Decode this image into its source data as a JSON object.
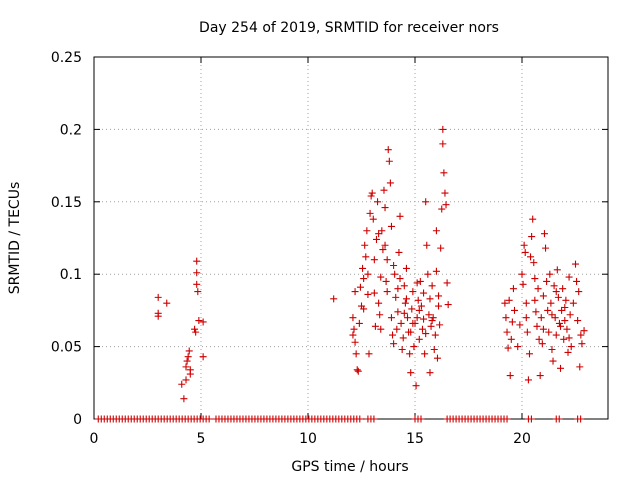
{
  "chart_data": {
    "type": "scatter",
    "title": "Day 254 of 2019, SRMTID for receiver nors",
    "xlabel": "GPS time / hours",
    "ylabel": "SRMTID / TECUs",
    "xlim": [
      0,
      24
    ],
    "ylim": [
      0,
      0.25
    ],
    "grid": true,
    "legend": "none",
    "marker": "+",
    "marker_color": "#cc0000",
    "x_ticks": [
      {
        "value": 0,
        "label": "0"
      },
      {
        "value": 5,
        "label": "5"
      },
      {
        "value": 10,
        "label": "10"
      },
      {
        "value": 15,
        "label": "15"
      },
      {
        "value": 20,
        "label": "20"
      }
    ],
    "y_ticks": [
      {
        "value": 0,
        "label": "0"
      },
      {
        "value": 0.05,
        "label": "0.05"
      },
      {
        "value": 0.1,
        "label": "0.1"
      },
      {
        "value": 0.15,
        "label": "0.15"
      },
      {
        "value": 0.2,
        "label": "0.2"
      },
      {
        "value": 0.25,
        "label": "0.25"
      }
    ],
    "series": [
      {
        "name": "SRMTID",
        "points": [
          [
            3.0,
            0.084
          ],
          [
            3.0,
            0.073
          ],
          [
            3.0,
            0.071
          ],
          [
            3.4,
            0.08
          ],
          [
            4.1,
            0.024
          ],
          [
            4.2,
            0.014
          ],
          [
            4.3,
            0.027
          ],
          [
            4.3,
            0.036
          ],
          [
            4.35,
            0.04
          ],
          [
            4.4,
            0.043
          ],
          [
            4.45,
            0.047
          ],
          [
            4.5,
            0.031
          ],
          [
            4.5,
            0.034
          ],
          [
            4.7,
            0.062
          ],
          [
            4.75,
            0.06
          ],
          [
            4.8,
            0.109
          ],
          [
            4.8,
            0.101
          ],
          [
            4.8,
            0.093
          ],
          [
            4.85,
            0.088
          ],
          [
            4.9,
            0.068
          ],
          [
            5.1,
            0.067
          ],
          [
            5.1,
            0.043
          ],
          [
            11.2,
            0.083
          ],
          [
            12.1,
            0.07
          ],
          [
            12.1,
            0.058
          ],
          [
            12.15,
            0.062
          ],
          [
            12.2,
            0.088
          ],
          [
            12.2,
            0.053
          ],
          [
            12.25,
            0.045
          ],
          [
            12.3,
            0.034
          ],
          [
            12.35,
            0.033
          ],
          [
            12.4,
            0.066
          ],
          [
            12.45,
            0.091
          ],
          [
            12.5,
            0.078
          ],
          [
            12.55,
            0.104
          ],
          [
            12.6,
            0.097
          ],
          [
            12.65,
            0.12
          ],
          [
            12.7,
            0.112
          ],
          [
            12.75,
            0.13
          ],
          [
            12.8,
            0.086
          ],
          [
            12.85,
            0.045
          ],
          [
            12.9,
            0.142
          ],
          [
            12.95,
            0.154
          ],
          [
            13.0,
            0.156
          ],
          [
            13.05,
            0.138
          ],
          [
            13.1,
            0.11
          ],
          [
            13.15,
            0.064
          ],
          [
            13.2,
            0.124
          ],
          [
            13.25,
            0.15
          ],
          [
            13.3,
            0.08
          ],
          [
            13.35,
            0.072
          ],
          [
            13.4,
            0.098
          ],
          [
            13.45,
            0.13
          ],
          [
            13.5,
            0.117
          ],
          [
            13.55,
            0.158
          ],
          [
            13.6,
            0.146
          ],
          [
            13.65,
            0.095
          ],
          [
            13.7,
            0.088
          ],
          [
            13.75,
            0.186
          ],
          [
            13.8,
            0.178
          ],
          [
            13.85,
            0.163
          ],
          [
            13.9,
            0.07
          ],
          [
            13.95,
            0.058
          ],
          [
            14.0,
            0.106
          ],
          [
            14.05,
            0.1
          ],
          [
            14.1,
            0.084
          ],
          [
            14.15,
            0.062
          ],
          [
            14.2,
            0.074
          ],
          [
            14.25,
            0.115
          ],
          [
            14.3,
            0.14
          ],
          [
            14.35,
            0.066
          ],
          [
            14.4,
            0.048
          ],
          [
            14.45,
            0.056
          ],
          [
            14.5,
            0.092
          ],
          [
            14.55,
            0.08
          ],
          [
            14.6,
            0.104
          ],
          [
            14.65,
            0.07
          ],
          [
            14.7,
            0.06
          ],
          [
            14.75,
            0.045
          ],
          [
            14.8,
            0.032
          ],
          [
            14.85,
            0.076
          ],
          [
            14.9,
            0.088
          ],
          [
            14.95,
            0.05
          ],
          [
            15.0,
            0.066
          ],
          [
            15.05,
            0.023
          ],
          [
            15.1,
            0.07
          ],
          [
            15.15,
            0.082
          ],
          [
            15.2,
            0.055
          ],
          [
            15.25,
            0.095
          ],
          [
            15.3,
            0.078
          ],
          [
            15.35,
            0.062
          ],
          [
            15.4,
            0.087
          ],
          [
            15.45,
            0.045
          ],
          [
            15.5,
            0.15
          ],
          [
            15.55,
            0.12
          ],
          [
            15.6,
            0.1
          ],
          [
            15.65,
            0.072
          ],
          [
            15.7,
            0.032
          ],
          [
            15.75,
            0.064
          ],
          [
            15.8,
            0.092
          ],
          [
            15.85,
            0.07
          ],
          [
            15.9,
            0.048
          ],
          [
            15.95,
            0.058
          ],
          [
            16.0,
            0.13
          ],
          [
            16.05,
            0.042
          ],
          [
            16.1,
            0.078
          ],
          [
            16.15,
            0.065
          ],
          [
            16.2,
            0.118
          ],
          [
            16.25,
            0.145
          ],
          [
            16.3,
            0.2
          ],
          [
            16.3,
            0.19
          ],
          [
            16.35,
            0.17
          ],
          [
            16.4,
            0.156
          ],
          [
            16.45,
            0.148
          ],
          [
            16.5,
            0.094
          ],
          [
            16.55,
            0.079
          ],
          [
            12.8,
            0.1
          ],
          [
            13.1,
            0.087
          ],
          [
            13.4,
            0.062
          ],
          [
            13.7,
            0.11
          ],
          [
            14.0,
            0.052
          ],
          [
            14.3,
            0.097
          ],
          [
            14.6,
            0.083
          ],
          [
            14.9,
            0.066
          ],
          [
            15.2,
            0.075
          ],
          [
            15.5,
            0.059
          ],
          [
            15.8,
            0.068
          ],
          [
            16.1,
            0.085
          ],
          [
            12.6,
            0.076
          ],
          [
            13.3,
            0.128
          ],
          [
            13.9,
            0.133
          ],
          [
            14.5,
            0.073
          ],
          [
            15.1,
            0.094
          ],
          [
            15.7,
            0.083
          ],
          [
            16.0,
            0.102
          ],
          [
            13.6,
            0.12
          ],
          [
            14.2,
            0.09
          ],
          [
            14.8,
            0.06
          ],
          [
            15.4,
            0.069
          ],
          [
            19.2,
            0.08
          ],
          [
            19.25,
            0.07
          ],
          [
            19.3,
            0.06
          ],
          [
            19.35,
            0.049
          ],
          [
            19.4,
            0.082
          ],
          [
            19.45,
            0.03
          ],
          [
            19.5,
            0.055
          ],
          [
            19.55,
            0.067
          ],
          [
            19.6,
            0.09
          ],
          [
            19.65,
            0.075
          ],
          [
            19.8,
            0.05
          ],
          [
            19.9,
            0.065
          ],
          [
            20.0,
            0.1
          ],
          [
            20.05,
            0.093
          ],
          [
            20.1,
            0.12
          ],
          [
            20.15,
            0.115
          ],
          [
            20.2,
            0.08
          ],
          [
            20.25,
            0.06
          ],
          [
            20.3,
            0.027
          ],
          [
            20.35,
            0.045
          ],
          [
            20.4,
            0.112
          ],
          [
            20.45,
            0.126
          ],
          [
            20.5,
            0.138
          ],
          [
            20.55,
            0.108
          ],
          [
            20.6,
            0.082
          ],
          [
            20.65,
            0.074
          ],
          [
            20.7,
            0.064
          ],
          [
            20.75,
            0.09
          ],
          [
            20.8,
            0.055
          ],
          [
            20.85,
            0.03
          ],
          [
            20.9,
            0.07
          ],
          [
            20.95,
            0.052
          ],
          [
            21.0,
            0.085
          ],
          [
            21.05,
            0.128
          ],
          [
            21.1,
            0.118
          ],
          [
            21.15,
            0.095
          ],
          [
            21.2,
            0.075
          ],
          [
            21.25,
            0.06
          ],
          [
            21.3,
            0.1
          ],
          [
            21.35,
            0.08
          ],
          [
            21.4,
            0.048
          ],
          [
            21.45,
            0.04
          ],
          [
            21.5,
            0.092
          ],
          [
            21.55,
            0.07
          ],
          [
            21.6,
            0.058
          ],
          [
            21.65,
            0.103
          ],
          [
            21.7,
            0.084
          ],
          [
            21.75,
            0.066
          ],
          [
            21.8,
            0.035
          ],
          [
            21.85,
            0.075
          ],
          [
            21.9,
            0.09
          ],
          [
            21.95,
            0.055
          ],
          [
            22.0,
            0.068
          ],
          [
            22.05,
            0.082
          ],
          [
            22.1,
            0.062
          ],
          [
            22.15,
            0.046
          ],
          [
            22.2,
            0.098
          ],
          [
            22.25,
            0.072
          ],
          [
            22.3,
            0.05
          ],
          [
            22.4,
            0.08
          ],
          [
            22.5,
            0.107
          ],
          [
            22.55,
            0.095
          ],
          [
            22.6,
            0.068
          ],
          [
            22.65,
            0.088
          ],
          [
            22.7,
            0.036
          ],
          [
            22.75,
            0.058
          ],
          [
            22.8,
            0.052
          ],
          [
            22.9,
            0.061
          ],
          [
            20.6,
            0.097
          ],
          [
            21.0,
            0.062
          ],
          [
            21.4,
            0.072
          ],
          [
            21.8,
            0.064
          ],
          [
            22.2,
            0.056
          ],
          [
            20.2,
            0.07
          ],
          [
            21.6,
            0.088
          ],
          [
            22.0,
            0.077
          ]
        ]
      }
    ],
    "zero_points": {
      "description": "points at y = 0 along the time axis",
      "ranges": [
        [
          0.2,
          5.4
        ],
        [
          5.7,
          12.5
        ],
        [
          12.8,
          13.1
        ],
        [
          15.0,
          15.4
        ],
        [
          16.5,
          19.3
        ],
        [
          20.3,
          20.5
        ],
        [
          21.6,
          21.8
        ],
        [
          22.6,
          22.8
        ]
      ],
      "step": 0.14
    }
  }
}
